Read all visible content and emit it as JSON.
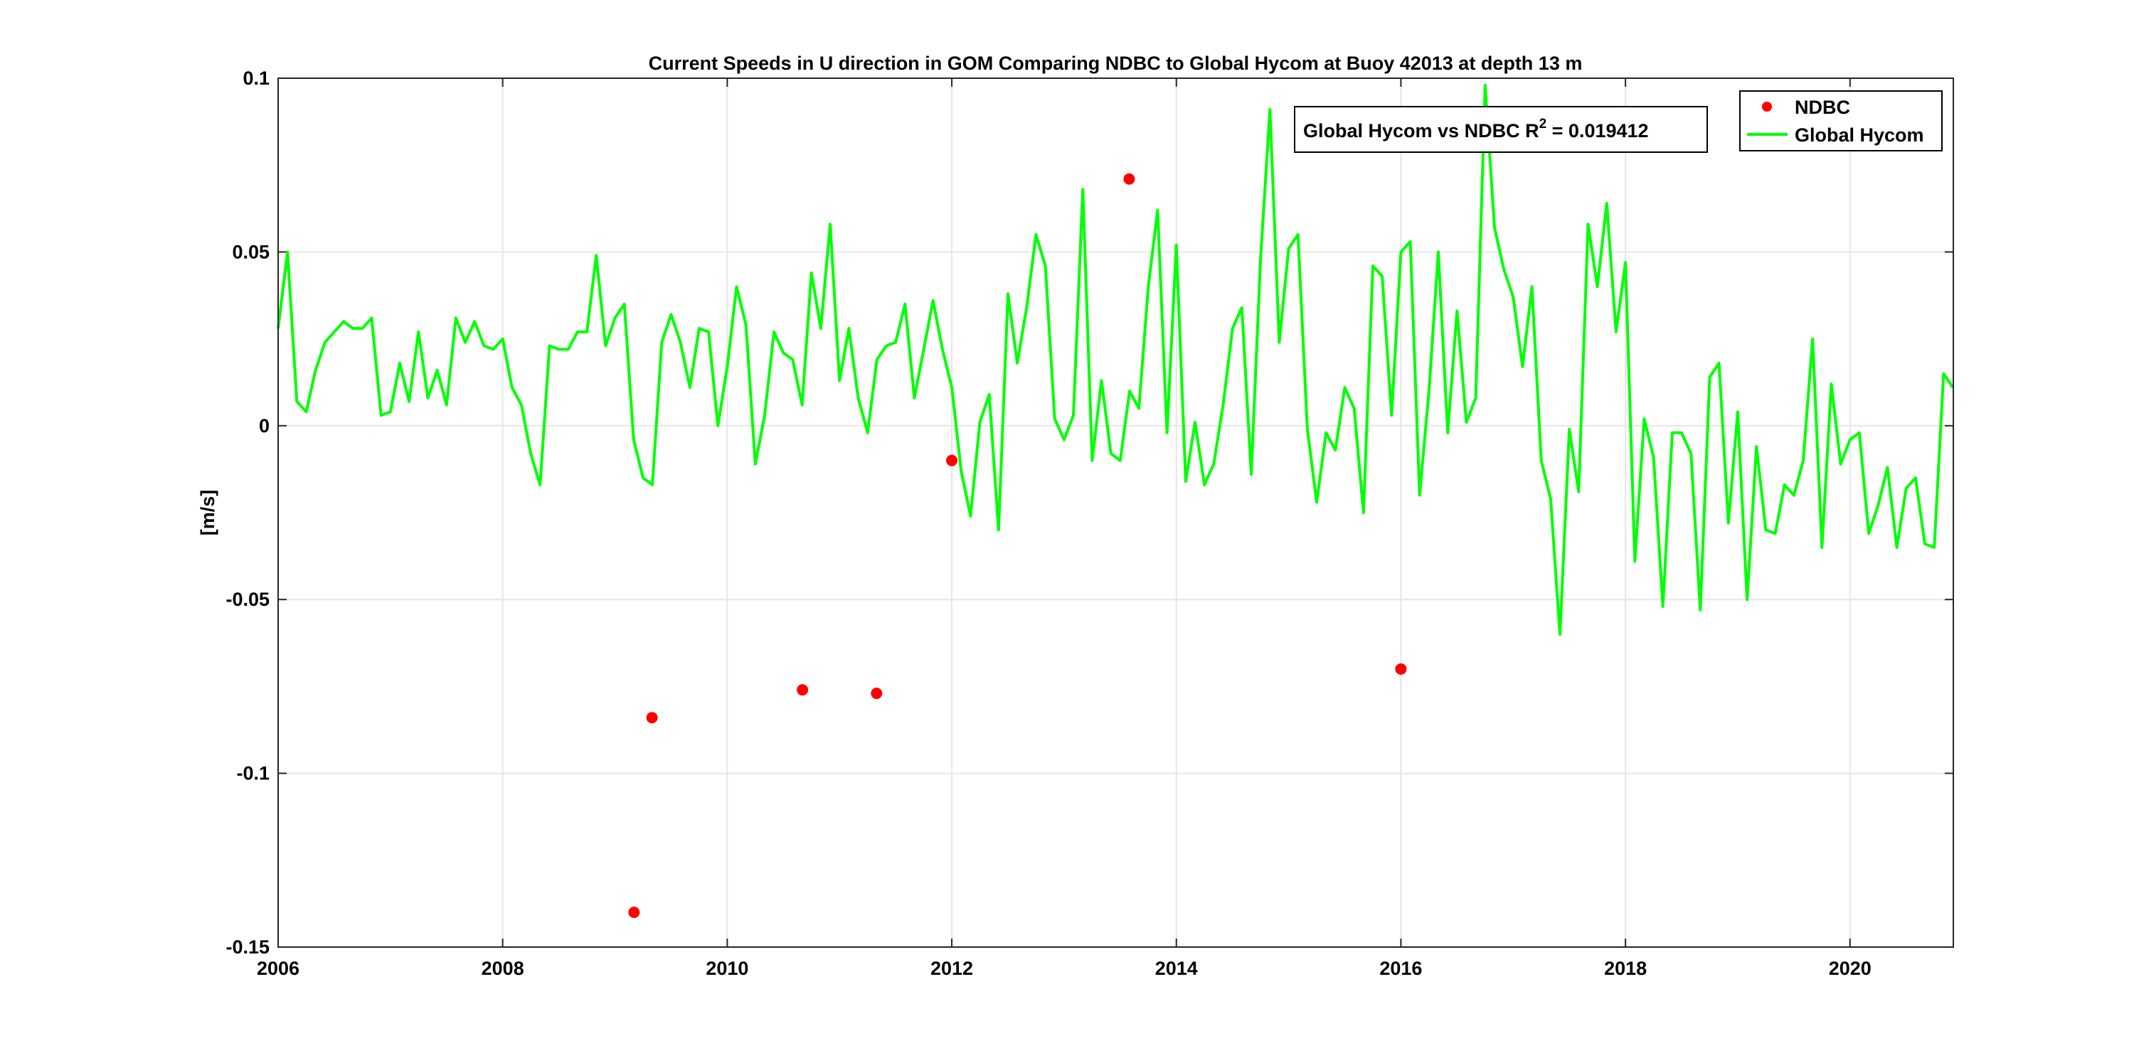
{
  "chart_data": {
    "type": "line",
    "title": "Current Speeds in U direction in GOM Comparing NDBC to Global Hycom at Buoy  42013  at depth  13 m",
    "xlabel": "",
    "ylabel": "[m/s]",
    "xlim": [
      2006,
      2020.92
    ],
    "ylim": [
      -0.15,
      0.1
    ],
    "xticks": [
      2006,
      2008,
      2010,
      2012,
      2014,
      2016,
      2018,
      2020
    ],
    "xtick_labels": [
      "2006",
      "2008",
      "2010",
      "2012",
      "2014",
      "2016",
      "2018",
      "2020"
    ],
    "yticks": [
      -0.15,
      -0.1,
      -0.05,
      0,
      0.05,
      0.1
    ],
    "ytick_labels": [
      "-0.15",
      "-0.1",
      "-0.05",
      "0",
      "0.05",
      "0.1"
    ],
    "grid": true,
    "legend_position": "top-right",
    "annotation": {
      "text": "Global Hycom vs NDBC R",
      "superscript": "2",
      "suffix": " = 0.019412"
    },
    "series": [
      {
        "name": "NDBC",
        "kind": "scatter",
        "color": "#ff0000",
        "x": [
          2009.17,
          2009.33,
          2010.67,
          2011.33,
          2012.0,
          2013.58,
          2016.0
        ],
        "y": [
          -0.14,
          -0.084,
          -0.076,
          -0.077,
          -0.01,
          0.071,
          -0.07
        ]
      },
      {
        "name": "Global Hycom",
        "kind": "line",
        "color": "#00ff00",
        "x_start": 2006.0,
        "x_step_months": 1,
        "y": [
          0.028,
          0.05,
          0.007,
          0.004,
          0.016,
          0.024,
          0.027,
          0.03,
          0.028,
          0.028,
          0.031,
          0.003,
          0.004,
          0.018,
          0.007,
          0.027,
          0.008,
          0.016,
          0.006,
          0.031,
          0.024,
          0.03,
          0.023,
          0.022,
          0.025,
          0.011,
          0.006,
          -0.008,
          -0.017,
          0.023,
          0.022,
          0.022,
          0.027,
          0.027,
          0.049,
          0.023,
          0.031,
          0.035,
          -0.004,
          -0.015,
          -0.017,
          0.024,
          0.032,
          0.024,
          0.011,
          0.028,
          0.027,
          0.0,
          0.017,
          0.04,
          0.029,
          -0.011,
          0.003,
          0.027,
          0.021,
          0.019,
          0.006,
          0.044,
          0.028,
          0.058,
          0.013,
          0.028,
          0.008,
          -0.002,
          0.019,
          0.023,
          0.024,
          0.035,
          0.008,
          0.022,
          0.036,
          0.022,
          0.011,
          -0.013,
          -0.026,
          0.001,
          0.009,
          -0.03,
          0.038,
          0.018,
          0.034,
          0.055,
          0.046,
          0.002,
          -0.004,
          0.003,
          0.068,
          -0.01,
          0.013,
          -0.008,
          -0.01,
          0.01,
          0.005,
          0.04,
          0.062,
          -0.002,
          0.052,
          -0.016,
          0.001,
          -0.017,
          -0.011,
          0.006,
          0.028,
          0.034,
          -0.014,
          0.048,
          0.091,
          0.024,
          0.051,
          0.055,
          -0.001,
          -0.022,
          -0.002,
          -0.007,
          0.011,
          0.005,
          -0.025,
          0.046,
          0.043,
          0.003,
          0.05,
          0.053,
          -0.02,
          0.01,
          0.05,
          -0.002,
          0.033,
          0.001,
          0.008,
          0.098,
          0.057,
          0.045,
          0.037,
          0.017,
          0.04,
          -0.01,
          -0.021,
          -0.06,
          -0.001,
          -0.019,
          0.058,
          0.04,
          0.064,
          0.027,
          0.047,
          -0.039,
          0.002,
          -0.009,
          -0.052,
          -0.002,
          -0.002,
          -0.008,
          -0.053,
          0.014,
          0.018,
          -0.028,
          0.004,
          -0.05,
          -0.006,
          -0.03,
          -0.031,
          -0.017,
          -0.02,
          -0.01,
          0.025,
          -0.035,
          0.012,
          -0.011,
          -0.004,
          -0.002,
          -0.031,
          -0.023,
          -0.012,
          -0.035,
          -0.018,
          -0.015,
          -0.034,
          -0.035,
          0.015,
          0.011
        ]
      }
    ]
  }
}
